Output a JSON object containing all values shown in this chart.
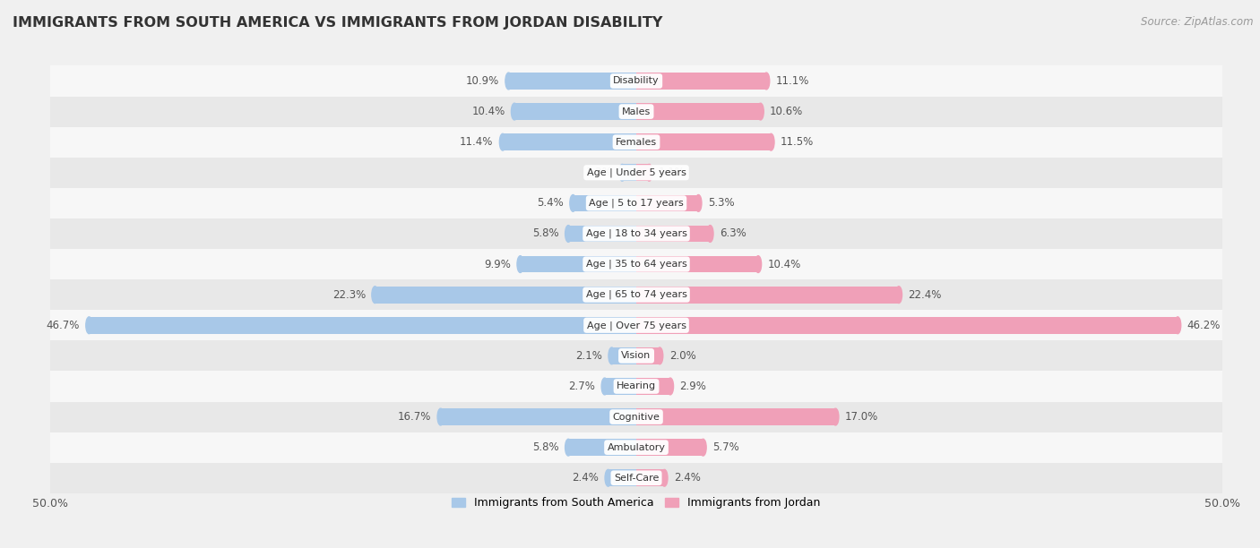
{
  "title": "IMMIGRANTS FROM SOUTH AMERICA VS IMMIGRANTS FROM JORDAN DISABILITY",
  "source": "Source: ZipAtlas.com",
  "categories": [
    "Disability",
    "Males",
    "Females",
    "Age | Under 5 years",
    "Age | 5 to 17 years",
    "Age | 18 to 34 years",
    "Age | 35 to 64 years",
    "Age | 65 to 74 years",
    "Age | Over 75 years",
    "Vision",
    "Hearing",
    "Cognitive",
    "Ambulatory",
    "Self-Care"
  ],
  "south_america": [
    10.9,
    10.4,
    11.4,
    1.2,
    5.4,
    5.8,
    9.9,
    22.3,
    46.7,
    2.1,
    2.7,
    16.7,
    5.8,
    2.4
  ],
  "jordan": [
    11.1,
    10.6,
    11.5,
    1.1,
    5.3,
    6.3,
    10.4,
    22.4,
    46.2,
    2.0,
    2.9,
    17.0,
    5.7,
    2.4
  ],
  "color_south_america": "#a8c8e8",
  "color_jordan": "#f0a0b8",
  "bg_color": "#f0f0f0",
  "row_bg_light": "#f7f7f7",
  "row_bg_dark": "#e8e8e8",
  "max_val": 50.0,
  "legend_label_sa": "Immigrants from South America",
  "legend_label_jordan": "Immigrants from Jordan"
}
